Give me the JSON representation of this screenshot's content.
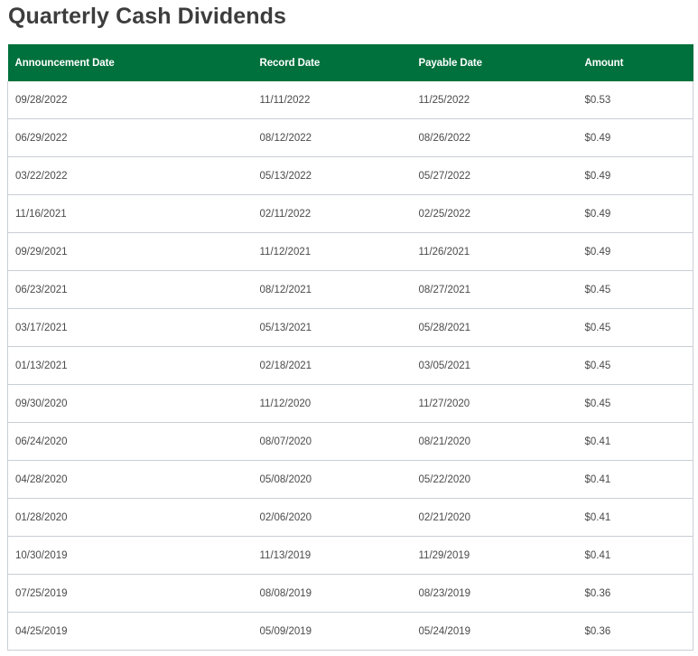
{
  "page": {
    "title": "Quarterly Cash Dividends"
  },
  "table": {
    "headers": [
      "Announcement Date",
      "Record Date",
      "Payable Date",
      "Amount"
    ],
    "rows": [
      [
        "09/28/2022",
        "11/11/2022",
        "11/25/2022",
        "$0.53"
      ],
      [
        "06/29/2022",
        "08/12/2022",
        "08/26/2022",
        "$0.49"
      ],
      [
        "03/22/2022",
        "05/13/2022",
        "05/27/2022",
        "$0.49"
      ],
      [
        "11/16/2021",
        "02/11/2022",
        "02/25/2022",
        "$0.49"
      ],
      [
        "09/29/2021",
        "11/12/2021",
        "11/26/2021",
        "$0.49"
      ],
      [
        "06/23/2021",
        "08/12/2021",
        "08/27/2021",
        "$0.45"
      ],
      [
        "03/17/2021",
        "05/13/2021",
        "05/28/2021",
        "$0.45"
      ],
      [
        "01/13/2021",
        "02/18/2021",
        "03/05/2021",
        "$0.45"
      ],
      [
        "09/30/2020",
        "11/12/2020",
        "11/27/2020",
        "$0.45"
      ],
      [
        "06/24/2020",
        "08/07/2020",
        "08/21/2020",
        "$0.41"
      ],
      [
        "04/28/2020",
        "05/08/2020",
        "05/22/2020",
        "$0.41"
      ],
      [
        "01/28/2020",
        "02/06/2020",
        "02/21/2020",
        "$0.41"
      ],
      [
        "10/30/2019",
        "11/13/2019",
        "11/29/2019",
        "$0.41"
      ],
      [
        "07/25/2019",
        "08/08/2019",
        "08/23/2019",
        "$0.36"
      ],
      [
        "04/25/2019",
        "05/09/2019",
        "05/24/2019",
        "$0.36"
      ]
    ]
  },
  "colors": {
    "header_bg": "#00703c",
    "header_text": "#ffffff",
    "row_border": "#c9ced6",
    "body_text": "#4a4a4a"
  }
}
